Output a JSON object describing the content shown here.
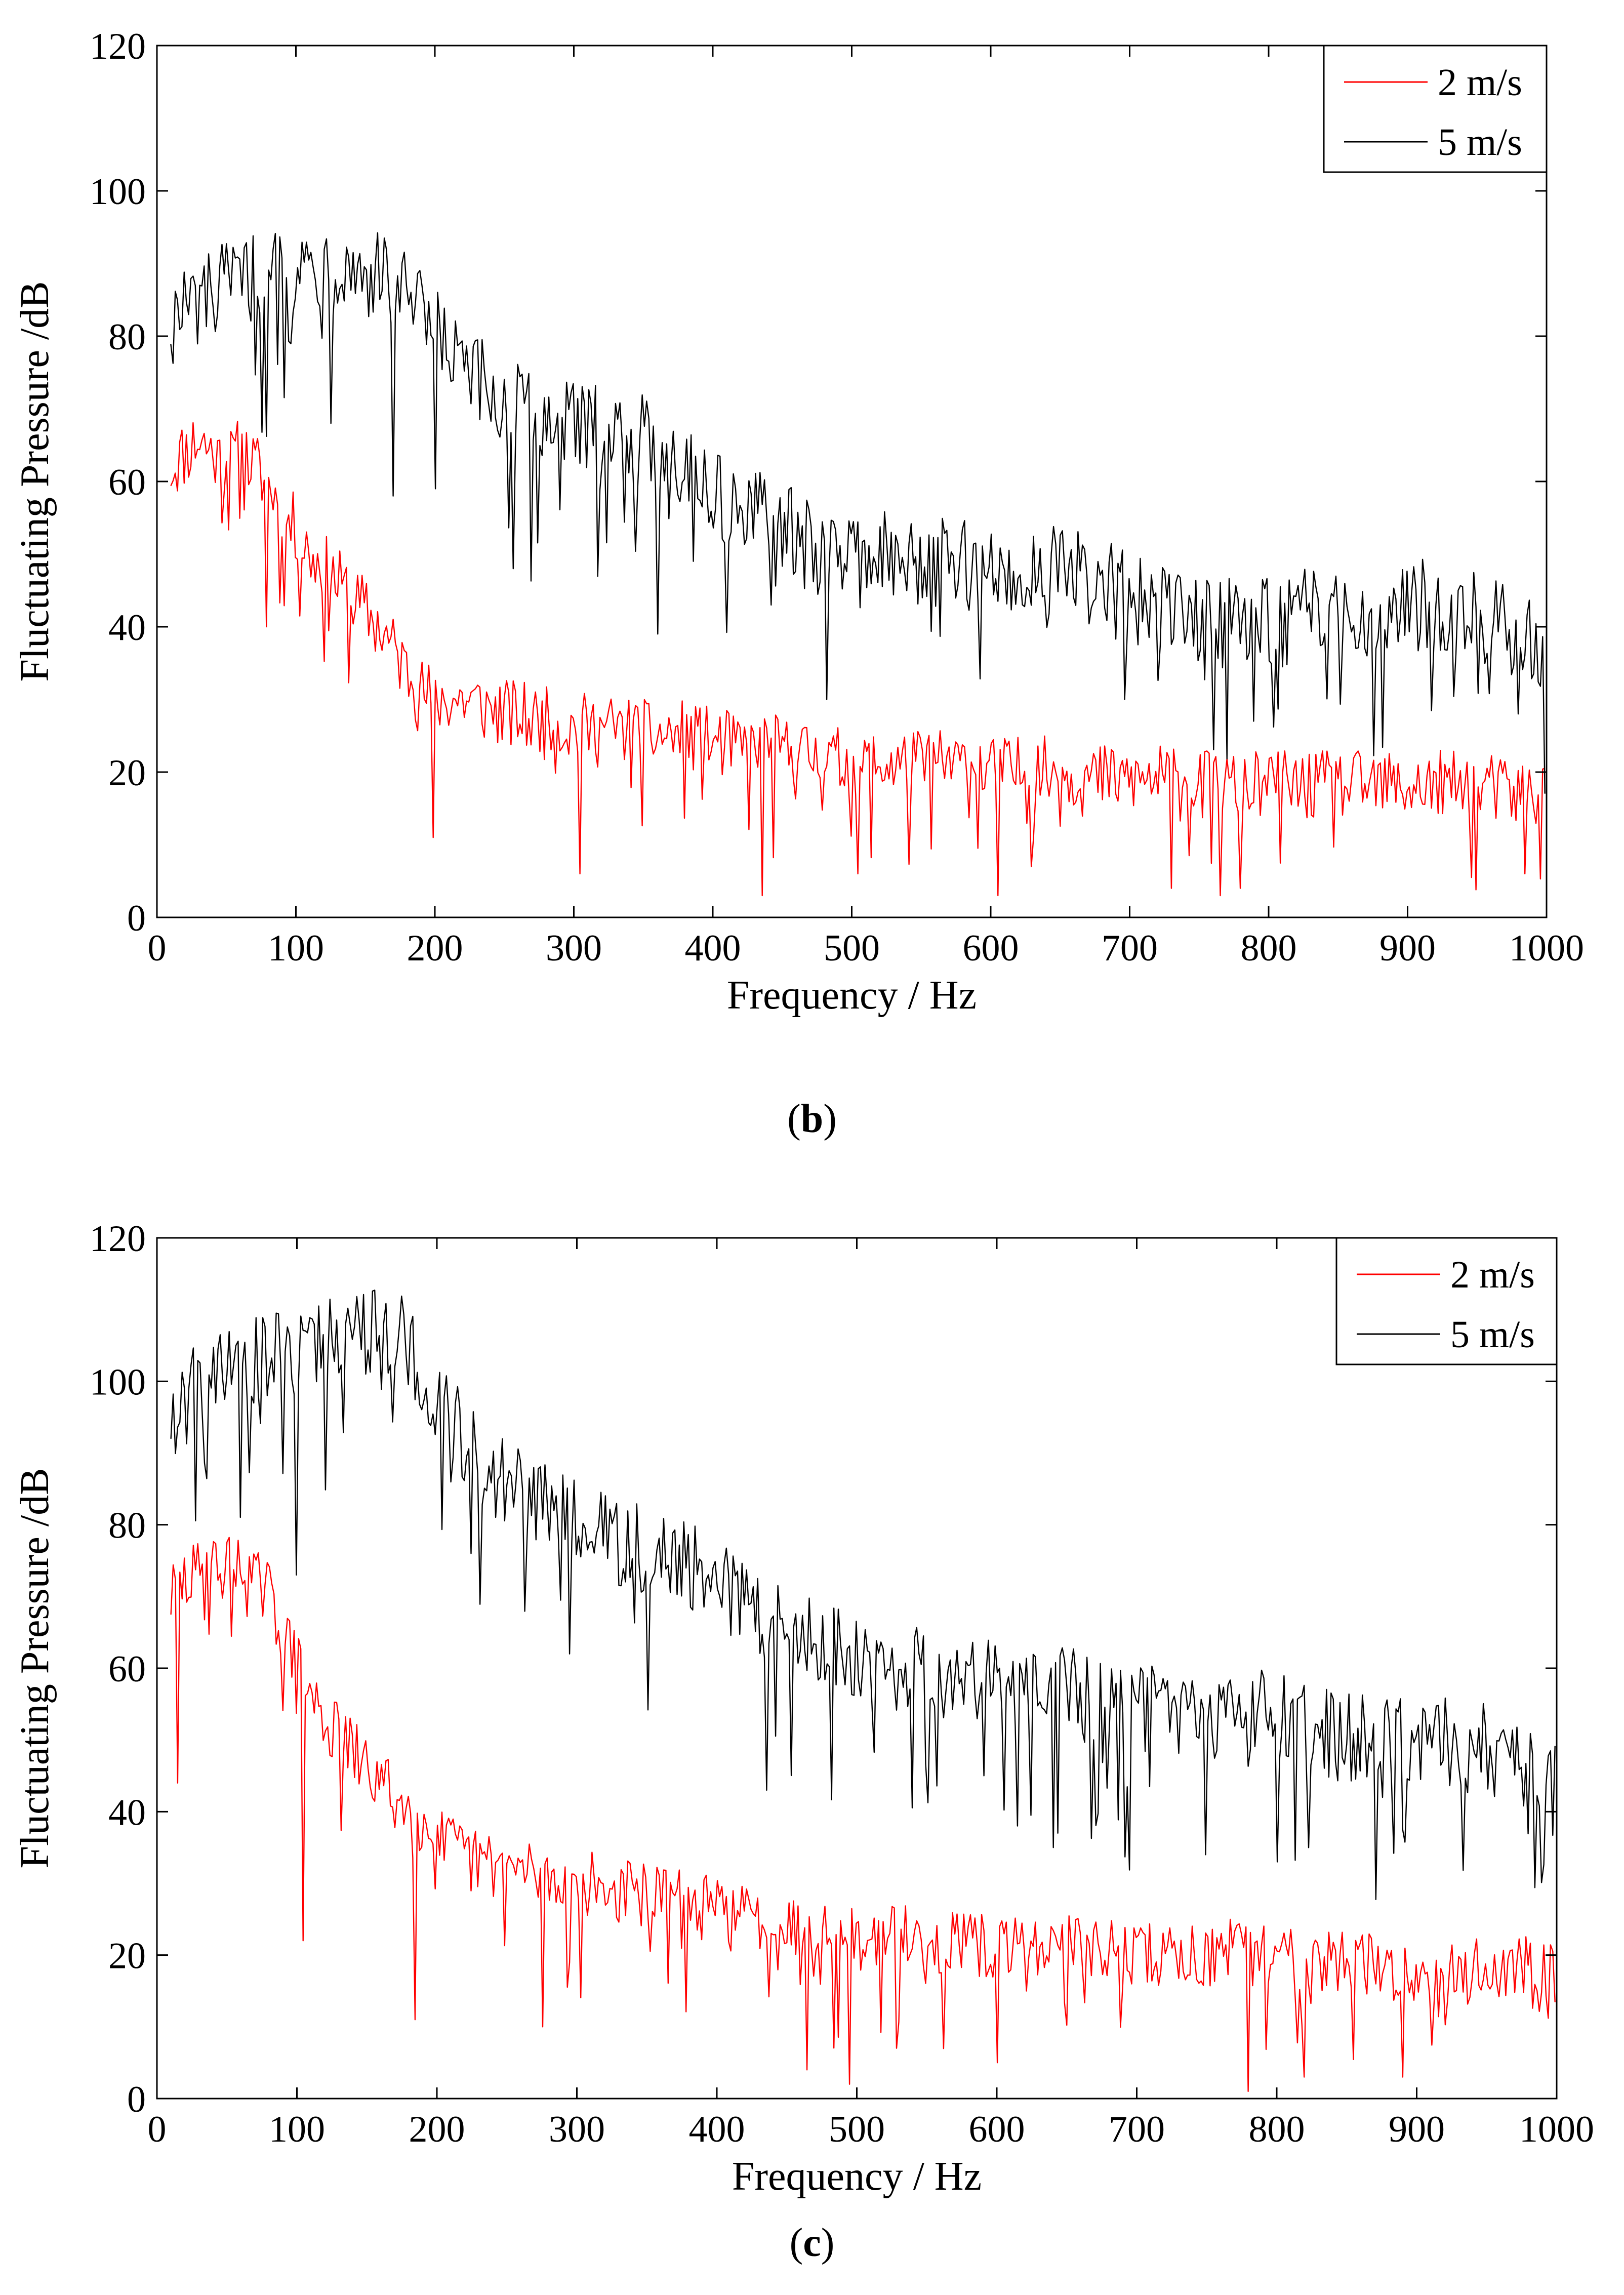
{
  "chart_data": [
    {
      "type": "line",
      "panel": "b",
      "title": "",
      "xlabel": "Frequency / Hz",
      "ylabel": "Fluctuating Pressure /dB",
      "xlim": [
        0,
        1000
      ],
      "ylim": [
        0,
        120
      ],
      "xticks": [
        0,
        100,
        200,
        300,
        400,
        500,
        600,
        700,
        800,
        900,
        1000
      ],
      "yticks": [
        0,
        20,
        40,
        60,
        80,
        100,
        120
      ],
      "xtick_labels": [
        "0",
        "100",
        "200",
        "300",
        "400",
        "500",
        "600",
        "700",
        "800",
        "900",
        "1000"
      ],
      "ytick_labels": [
        "0",
        "20",
        "40",
        "60",
        "80",
        "100",
        "120"
      ],
      "grid": false,
      "legend_position": "top-right",
      "series": [
        {
          "name": "2 m/s",
          "color": "#ff0000",
          "x": [
            10,
            20,
            30,
            40,
            50,
            60,
            70,
            80,
            90,
            100,
            110,
            120,
            130,
            140,
            150,
            160,
            170,
            180,
            190,
            200,
            220,
            250,
            275,
            300,
            325,
            350,
            375,
            400,
            425,
            450,
            475,
            500,
            525,
            550,
            575,
            600,
            625,
            650,
            675,
            700,
            725,
            750,
            775,
            800,
            825,
            850,
            875,
            900,
            925,
            950,
            975,
            1000
          ],
          "values": [
            62,
            64,
            66,
            64,
            62,
            64,
            62,
            60,
            56,
            53,
            50,
            48,
            46,
            44,
            42,
            40,
            37,
            34,
            31,
            30,
            30,
            28,
            27,
            26,
            26,
            25,
            25,
            24,
            23,
            23,
            22,
            21,
            21,
            21,
            21,
            20,
            20,
            20,
            19,
            19,
            19,
            18,
            18,
            18,
            18,
            18,
            18,
            18,
            18,
            18,
            17,
            17
          ],
          "dips": [
            [
              78,
              40
            ],
            [
              198,
              11
            ],
            [
              305,
              6
            ],
            [
              435,
              3
            ],
            [
              505,
              6
            ],
            [
              605,
              3
            ],
            [
              730,
              4
            ],
            [
              765,
              3
            ],
            [
              780,
              4
            ],
            [
              985,
              6
            ]
          ]
        },
        {
          "name": "5 m/s",
          "color": "#000000",
          "x": [
            10,
            25,
            50,
            75,
            100,
            125,
            150,
            175,
            200,
            225,
            250,
            275,
            300,
            325,
            350,
            375,
            400,
            425,
            450,
            475,
            500,
            525,
            550,
            575,
            600,
            625,
            650,
            675,
            700,
            725,
            750,
            775,
            800,
            825,
            850,
            875,
            900,
            925,
            950,
            975,
            1000
          ],
          "values": [
            82,
            84,
            86,
            88,
            89,
            90,
            89,
            86,
            80,
            74,
            70,
            68,
            67,
            66,
            65,
            63,
            58,
            55,
            53,
            50,
            50,
            49,
            48,
            48,
            47,
            47,
            47,
            46,
            43,
            42,
            41,
            40,
            40,
            41,
            42,
            42,
            43,
            42,
            41,
            39,
            36
          ],
          "dips": [
            [
              125,
              68
            ],
            [
              170,
              58
            ],
            [
              200,
              59
            ],
            [
              257,
              48
            ],
            [
              360,
              39
            ],
            [
              442,
              43
            ],
            [
              697,
              30
            ],
            [
              790,
              27
            ],
            [
              980,
              28
            ]
          ]
        }
      ]
    },
    {
      "type": "line",
      "panel": "c",
      "title": "",
      "xlabel": "Frequency / Hz",
      "ylabel": "Fluctuating Pressure /dB",
      "xlim": [
        0,
        1000
      ],
      "ylim": [
        0,
        120
      ],
      "xticks": [
        0,
        100,
        200,
        300,
        400,
        500,
        600,
        700,
        800,
        900,
        1000
      ],
      "yticks": [
        0,
        20,
        40,
        60,
        80,
        100,
        120
      ],
      "xtick_labels": [
        "0",
        "100",
        "200",
        "300",
        "400",
        "500",
        "600",
        "700",
        "800",
        "900",
        "1000"
      ],
      "ytick_labels": [
        "0",
        "20",
        "40",
        "60",
        "80",
        "100",
        "120"
      ],
      "grid": false,
      "legend_position": "top-right",
      "series": [
        {
          "name": "2 m/s",
          "color": "#ff0000",
          "x": [
            10,
            20,
            30,
            40,
            50,
            60,
            70,
            80,
            90,
            100,
            110,
            120,
            130,
            140,
            150,
            160,
            170,
            180,
            190,
            200,
            225,
            250,
            275,
            300,
            325,
            350,
            375,
            400,
            425,
            450,
            475,
            500,
            525,
            550,
            575,
            600,
            625,
            650,
            675,
            700,
            725,
            750,
            775,
            800,
            825,
            850,
            875,
            900,
            925,
            950,
            975,
            1000
          ],
          "values": [
            70,
            72,
            73,
            74,
            74,
            73,
            72,
            70,
            65,
            60,
            56,
            53,
            50,
            48,
            46,
            44,
            42,
            40,
            38,
            36,
            33,
            32,
            31,
            30,
            29,
            28,
            27,
            26,
            25,
            24,
            23,
            22,
            22,
            22,
            21,
            21,
            21,
            21,
            20,
            20,
            20,
            20,
            20,
            20,
            19,
            19,
            18,
            17,
            17,
            18,
            18,
            17
          ],
          "dips": [
            [
              15,
              44
            ],
            [
              105,
              22
            ],
            [
              185,
              11
            ],
            [
              275,
              10
            ],
            [
              465,
              4
            ],
            [
              495,
              2
            ],
            [
              600,
              5
            ],
            [
              780,
              1
            ],
            [
              820,
              3
            ],
            [
              890,
              3
            ]
          ]
        },
        {
          "name": "5 m/s",
          "color": "#000000",
          "x": [
            10,
            25,
            50,
            75,
            100,
            125,
            150,
            175,
            200,
            225,
            250,
            275,
            300,
            325,
            350,
            375,
            400,
            425,
            450,
            475,
            500,
            525,
            550,
            575,
            600,
            625,
            650,
            675,
            700,
            725,
            750,
            775,
            800,
            825,
            850,
            875,
            900,
            925,
            950,
            975,
            1000
          ],
          "values": [
            95,
            98,
            101,
            103,
            104,
            106,
            107,
            105,
            98,
            90,
            85,
            82,
            79,
            77,
            76,
            74,
            71,
            68,
            66,
            63,
            61,
            60,
            59,
            58,
            57,
            56,
            56,
            55,
            54,
            53,
            53,
            54,
            53,
            51,
            50,
            50,
            49,
            49,
            48,
            46,
            42
          ],
          "dips": [
            [
              100,
              73
            ],
            [
              225,
              76
            ],
            [
              295,
              62
            ],
            [
              435,
              43
            ],
            [
              640,
              35
            ],
            [
              750,
              34
            ],
            [
              800,
              33
            ],
            [
              1000,
              23
            ]
          ]
        }
      ]
    }
  ],
  "captions": {
    "b": {
      "open": "(",
      "letter": "b",
      "close": ")"
    },
    "c": {
      "open": "(",
      "letter": "c",
      "close": ")"
    }
  }
}
